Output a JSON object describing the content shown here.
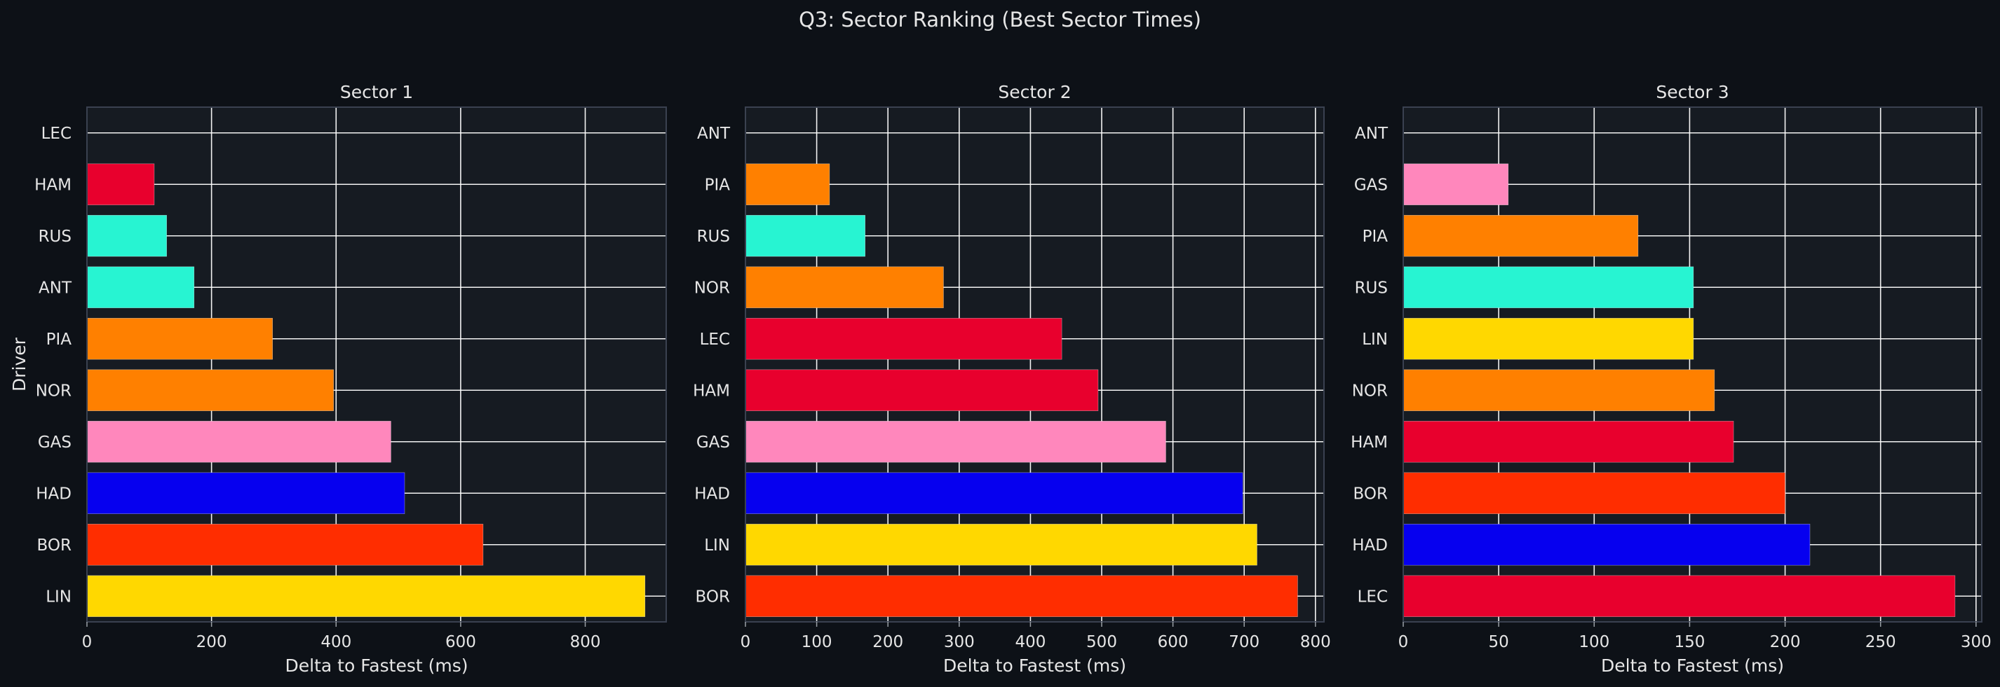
{
  "figure": {
    "title": "Q3: Sector Ranking (Best Sector Times)",
    "background": "#0d1117",
    "panel_background": "#161b22",
    "grid_color": "#ffffff",
    "text_color": "#e6e6e6"
  },
  "chart_data": [
    {
      "type": "bar",
      "orientation": "horizontal",
      "title": "Sector 1",
      "xlabel": "Delta to Fastest (ms)",
      "ylabel": "Driver",
      "grid": true,
      "xlim": [
        0,
        930
      ],
      "xticks": [
        0,
        200,
        400,
        600,
        800
      ],
      "categories": [
        "LEC",
        "HAM",
        "RUS",
        "ANT",
        "PIA",
        "NOR",
        "GAS",
        "HAD",
        "BOR",
        "LIN"
      ],
      "values": [
        0,
        108,
        128,
        172,
        298,
        396,
        488,
        510,
        636,
        896
      ],
      "colors": [
        "#e8002d",
        "#e8002d",
        "#27f4d2",
        "#27f4d2",
        "#ff8000",
        "#ff8000",
        "#ff87bc",
        "#0600ef",
        "#ff2d00",
        "#ffd800"
      ]
    },
    {
      "type": "bar",
      "orientation": "horizontal",
      "title": "Sector 2",
      "xlabel": "Delta to Fastest (ms)",
      "ylabel": "",
      "grid": true,
      "xlim": [
        0,
        812
      ],
      "xticks": [
        0,
        100,
        200,
        300,
        400,
        500,
        600,
        700,
        800
      ],
      "categories": [
        "ANT",
        "PIA",
        "RUS",
        "NOR",
        "LEC",
        "HAM",
        "GAS",
        "HAD",
        "LIN",
        "BOR"
      ],
      "values": [
        0,
        118,
        168,
        278,
        444,
        495,
        590,
        698,
        718,
        775
      ],
      "colors": [
        "#27f4d2",
        "#ff8000",
        "#27f4d2",
        "#ff8000",
        "#e8002d",
        "#e8002d",
        "#ff87bc",
        "#0600ef",
        "#ffd800",
        "#ff2d00"
      ]
    },
    {
      "type": "bar",
      "orientation": "horizontal",
      "title": "Sector 3",
      "xlabel": "Delta to Fastest (ms)",
      "ylabel": "",
      "grid": true,
      "xlim": [
        0,
        303
      ],
      "xticks": [
        0,
        50,
        100,
        150,
        200,
        250,
        300
      ],
      "categories": [
        "ANT",
        "GAS",
        "PIA",
        "RUS",
        "LIN",
        "NOR",
        "HAM",
        "BOR",
        "HAD",
        "LEC"
      ],
      "values": [
        0,
        55,
        123,
        152,
        152,
        163,
        173,
        200,
        213,
        289
      ],
      "colors": [
        "#27f4d2",
        "#ff87bc",
        "#ff8000",
        "#27f4d2",
        "#ffd800",
        "#ff8000",
        "#e8002d",
        "#ff2d00",
        "#0600ef",
        "#e8002d"
      ]
    }
  ]
}
